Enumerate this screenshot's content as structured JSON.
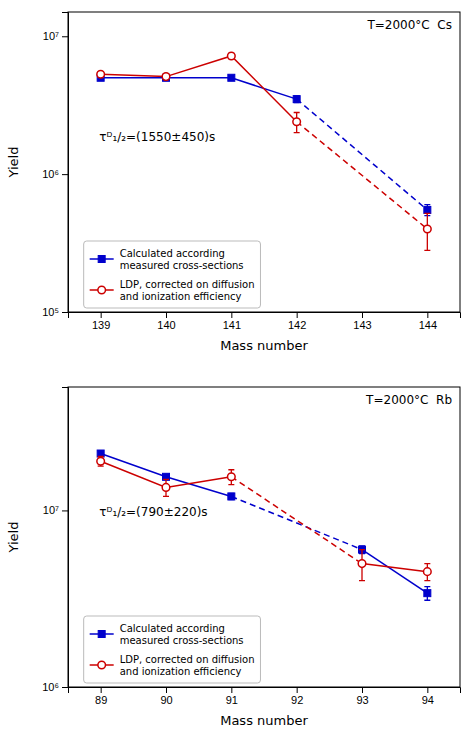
{
  "chart_data": [
    {
      "type": "line",
      "title": "T=2000°C  Cs",
      "annotation": "τᴰ₁/₂=(1550±450)s",
      "x_label": "Mass number",
      "y_label": "Yield",
      "log": "y",
      "grid": false,
      "legend": "lower left",
      "xlim": [
        138.5,
        144.5
      ],
      "xticks": [
        139,
        140,
        141,
        142,
        143,
        144
      ],
      "ylim": [
        100000,
        15000000
      ],
      "yticks": [
        {
          "value": 100000,
          "label": "10⁵"
        },
        {
          "value": 1000000,
          "label": "10⁶"
        },
        {
          "value": 10000000,
          "label": "10⁷"
        }
      ],
      "x": [
        139,
        140,
        141,
        142,
        144
      ],
      "series": [
        {
          "name": "Calculated according\nmeasured cross-sections",
          "color": "#0000cc",
          "marker": "square",
          "line_style": [
            "solid",
            "solid",
            "solid",
            "dashed"
          ],
          "values": [
            5000000,
            5000000,
            5000000,
            3500000,
            550000
          ],
          "errors": [
            150000,
            150000,
            150000,
            200000,
            50000
          ]
        },
        {
          "name": "LDP, corrected on diffusion\nand ionization efficiency",
          "color": "#cc0000",
          "marker": "open-circle",
          "line_style": [
            "solid",
            "solid",
            "solid",
            "dashed"
          ],
          "values": [
            5300000,
            5100000,
            7200000,
            2400000,
            400000
          ],
          "errors": [
            250000,
            250000,
            300000,
            400000,
            120000
          ]
        }
      ]
    },
    {
      "type": "line",
      "title": "T=2000°C  Rb",
      "annotation": "τᴰ₁/₂=(790±220)s",
      "x_label": "Mass number",
      "y_label": "Yield",
      "log": "y",
      "grid": false,
      "legend": "lower left",
      "xlim": [
        88.5,
        94.5
      ],
      "xticks": [
        89,
        90,
        91,
        92,
        93,
        94
      ],
      "ylim": [
        1000000,
        50000000
      ],
      "yticks": [
        {
          "value": 1000000,
          "label": "10⁶"
        },
        {
          "value": 10000000,
          "label": "10⁷"
        }
      ],
      "x": [
        89,
        90,
        91,
        93,
        94
      ],
      "series": [
        {
          "name": "Calculated according\nmeasured cross-sections",
          "color": "#0000cc",
          "marker": "square",
          "line_style": [
            "solid",
            "solid",
            "dashed",
            "solid"
          ],
          "values": [
            21000000,
            15500000,
            12000000,
            6000000,
            3400000
          ],
          "errors": [
            500000,
            500000,
            500000,
            300000,
            300000
          ]
        },
        {
          "name": "LDP, corrected on diffusion\nand ionization efficiency",
          "color": "#cc0000",
          "marker": "open-circle",
          "line_style": [
            "solid",
            "solid",
            "dashed",
            "solid"
          ],
          "values": [
            19000000,
            13500000,
            15500000,
            5000000,
            4500000
          ],
          "errors": [
            1200000,
            1500000,
            1500000,
            1000000,
            500000
          ]
        }
      ]
    }
  ]
}
